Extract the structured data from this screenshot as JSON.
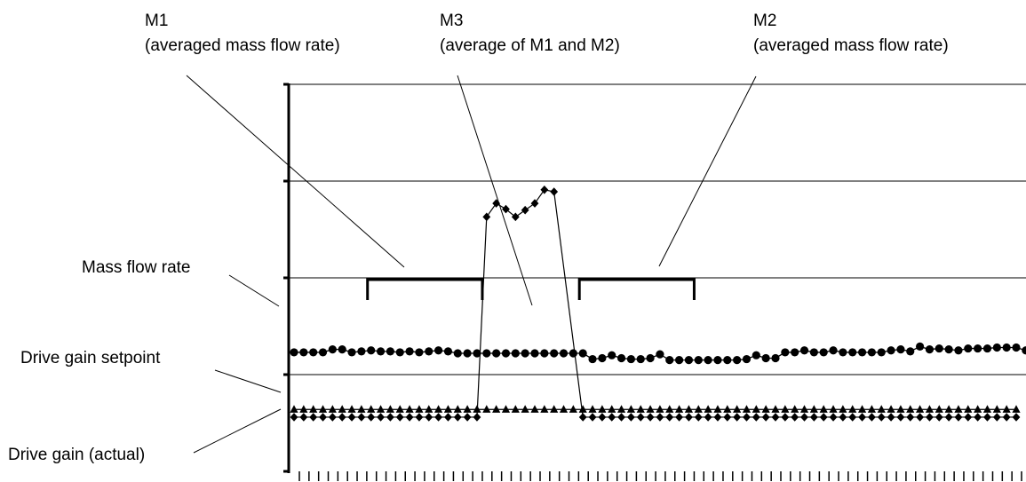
{
  "annotations": {
    "m1_title": "M1",
    "m1_desc": "(averaged mass flow rate)",
    "m3_title": "M3",
    "m3_desc": "(average of M1 and M2)",
    "m2_title": "M2",
    "m2_desc": "(averaged mass flow rate)",
    "mass_flow": "Mass flow rate",
    "setpoint": "Drive gain setpoint",
    "actual": "Drive gain (actual)"
  },
  "chart_data": {
    "type": "line",
    "title": "",
    "xlabel": "",
    "ylabel": "",
    "grid": "horizontal",
    "ylim": [
      0,
      4
    ],
    "x_range": [
      1,
      77
    ],
    "series": [
      {
        "name": "Mass flow rate",
        "marker": "circle",
        "x": [
          1,
          2,
          3,
          4,
          5,
          6,
          7,
          8,
          9,
          10,
          11,
          12,
          13,
          14,
          15,
          16,
          17,
          18,
          19,
          20,
          21,
          22,
          23,
          24,
          25,
          26,
          27,
          28,
          29,
          30,
          31,
          32,
          33,
          34,
          35,
          36,
          37,
          38,
          39,
          40,
          41,
          42,
          43,
          44,
          45,
          46,
          47,
          48,
          49,
          50,
          51,
          52,
          53,
          54,
          55,
          56,
          57,
          58,
          59,
          60,
          61,
          62,
          63,
          64,
          65,
          66,
          67,
          68,
          69,
          70,
          71,
          72,
          73,
          74,
          75,
          76,
          77
        ],
        "values": [
          1.23,
          1.23,
          1.23,
          1.23,
          1.26,
          1.26,
          1.23,
          1.24,
          1.25,
          1.24,
          1.24,
          1.23,
          1.24,
          1.23,
          1.24,
          1.25,
          1.24,
          1.22,
          1.22,
          1.22,
          1.22,
          1.22,
          1.22,
          1.22,
          1.22,
          1.22,
          1.22,
          1.22,
          1.22,
          1.22,
          1.22,
          1.16,
          1.17,
          1.2,
          1.17,
          1.16,
          1.16,
          1.17,
          1.21,
          1.15,
          1.15,
          1.15,
          1.15,
          1.15,
          1.15,
          1.15,
          1.15,
          1.16,
          1.2,
          1.17,
          1.17,
          1.23,
          1.23,
          1.25,
          1.23,
          1.23,
          1.25,
          1.23,
          1.23,
          1.23,
          1.23,
          1.23,
          1.25,
          1.26,
          1.24,
          1.29,
          1.26,
          1.27,
          1.26,
          1.25,
          1.27,
          1.27,
          1.27,
          1.28,
          1.28,
          1.28,
          1.25
        ]
      },
      {
        "name": "M3 (average of M1 and M2)",
        "marker": "diamond",
        "x": [
          21,
          22,
          23,
          24,
          25,
          26,
          27,
          28
        ],
        "values": [
          2.63,
          2.77,
          2.71,
          2.63,
          2.7,
          2.77,
          2.91,
          2.89
        ]
      },
      {
        "name": "Drive gain setpoint",
        "marker": "triangle",
        "x": [
          1,
          2,
          3,
          4,
          5,
          6,
          7,
          8,
          9,
          10,
          11,
          12,
          13,
          14,
          15,
          16,
          17,
          18,
          19,
          20,
          21,
          22,
          23,
          24,
          25,
          26,
          27,
          28,
          29,
          30,
          31,
          32,
          33,
          34,
          35,
          36,
          37,
          38,
          39,
          40,
          41,
          42,
          43,
          44,
          45,
          46,
          47,
          48,
          49,
          50,
          51,
          52,
          53,
          54,
          55,
          56,
          57,
          58,
          59,
          60,
          61,
          62,
          63,
          64,
          65,
          66,
          67,
          68,
          69,
          70,
          71,
          72,
          73,
          74,
          75,
          76
        ],
        "values": [
          0.64,
          0.64,
          0.64,
          0.64,
          0.64,
          0.64,
          0.64,
          0.64,
          0.64,
          0.64,
          0.64,
          0.64,
          0.64,
          0.64,
          0.64,
          0.64,
          0.64,
          0.64,
          0.64,
          0.64,
          0.64,
          0.64,
          0.64,
          0.64,
          0.64,
          0.64,
          0.64,
          0.64,
          0.64,
          0.64,
          0.64,
          0.64,
          0.64,
          0.64,
          0.64,
          0.64,
          0.64,
          0.64,
          0.64,
          0.64,
          0.64,
          0.64,
          0.64,
          0.64,
          0.64,
          0.64,
          0.64,
          0.64,
          0.64,
          0.64,
          0.64,
          0.64,
          0.64,
          0.64,
          0.64,
          0.64,
          0.64,
          0.64,
          0.64,
          0.64,
          0.64,
          0.64,
          0.64,
          0.64,
          0.64,
          0.64,
          0.64,
          0.64,
          0.64,
          0.64,
          0.64,
          0.64,
          0.64,
          0.64,
          0.64,
          0.64
        ]
      },
      {
        "name": "Drive gain (actual)",
        "marker": "diamond",
        "x": [
          1,
          2,
          3,
          4,
          5,
          6,
          7,
          8,
          9,
          10,
          11,
          12,
          13,
          14,
          15,
          16,
          17,
          18,
          19,
          20,
          21,
          22,
          23,
          24,
          25,
          26,
          27,
          28,
          29,
          30,
          31,
          32,
          33,
          34,
          35,
          36,
          37,
          38,
          39,
          40,
          41,
          42,
          43,
          44,
          45,
          46,
          47,
          48,
          49,
          50,
          51,
          52,
          53,
          54,
          55,
          56,
          57,
          58,
          59,
          60,
          61,
          62,
          63,
          64,
          65,
          66,
          67,
          68,
          69,
          70,
          71,
          72,
          73,
          74,
          75,
          76
        ],
        "values": [
          0.56,
          0.56,
          0.56,
          0.56,
          0.56,
          0.56,
          0.56,
          0.56,
          0.56,
          0.56,
          0.56,
          0.56,
          0.56,
          0.56,
          0.56,
          0.56,
          0.56,
          0.56,
          0.56,
          0.56,
          null,
          null,
          null,
          null,
          null,
          null,
          null,
          null,
          null,
          null,
          0.56,
          0.56,
          0.56,
          0.56,
          0.56,
          0.56,
          0.56,
          0.56,
          0.56,
          0.56,
          0.56,
          0.56,
          0.56,
          0.56,
          0.56,
          0.56,
          0.56,
          0.56,
          0.56,
          0.56,
          0.56,
          0.56,
          0.56,
          0.56,
          0.56,
          0.56,
          0.56,
          0.56,
          0.56,
          0.56,
          0.56,
          0.56,
          0.56,
          0.56,
          0.56,
          0.56,
          0.56,
          0.56,
          0.56,
          0.56,
          0.56,
          0.56,
          0.56,
          0.56,
          0.56,
          0.56
        ]
      }
    ],
    "brackets": [
      {
        "label": "M1",
        "x_start": 9,
        "x_end": 20
      },
      {
        "label": "M2",
        "x_start": 31,
        "x_end": 42
      }
    ]
  }
}
